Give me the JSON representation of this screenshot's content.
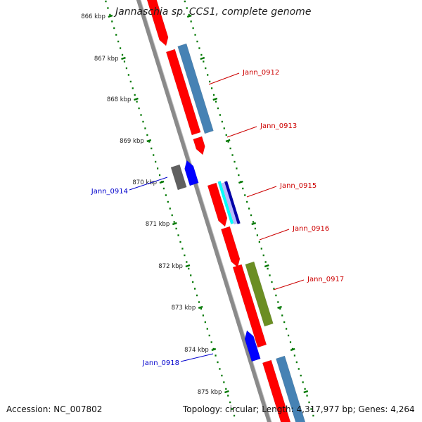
{
  "title": "Jannaschia sp. CCS1, complete genome",
  "footer": {
    "accession": "Accession: NC_007802",
    "summary": "Topology: circular; Length: 4,317,977 bp; Genes: 4,264"
  },
  "ruler": [
    "866 kbp",
    "867 kbp",
    "868 kbp",
    "869 kbp",
    "870 kbp",
    "871 kbp",
    "872 kbp",
    "873 kbp",
    "874 kbp",
    "875 kbp"
  ],
  "gene_labels": {
    "forward": [
      "Jann_0912",
      "Jann_0913",
      "Jann_0915",
      "Jann_0916",
      "Jann_0917"
    ],
    "reverse": [
      "Jann_0914",
      "Jann_0918"
    ]
  },
  "colors": {
    "forward_label": "#cc0000",
    "reverse_label": "#0000cc",
    "cds": "#ff0000",
    "gene_outer": "#4682b4",
    "reverse_cds": "#0000ff",
    "reverse_outer": "#606060",
    "green_feature": "#6b8e23",
    "cyan_feature": "#00ffff",
    "ruler_ticks": "#007700",
    "backbone": "#8a8a8a"
  }
}
